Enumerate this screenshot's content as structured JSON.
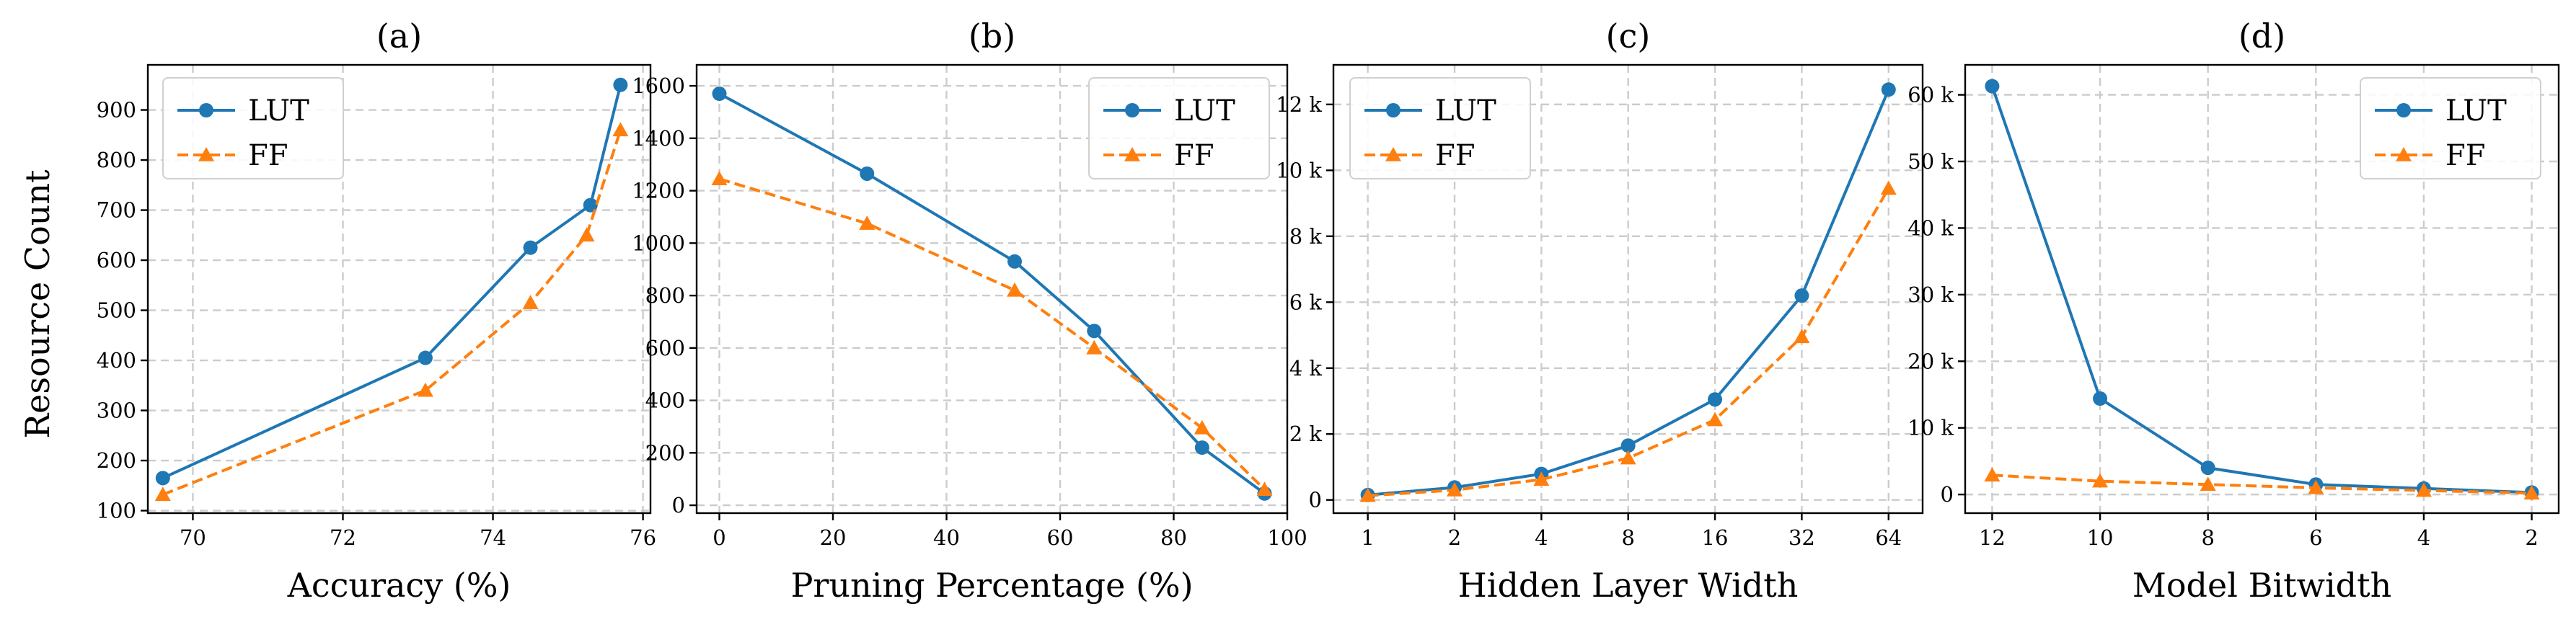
{
  "figure": {
    "ylabel": "Resource Count"
  },
  "colors": {
    "lut": "#1f77b4",
    "ff": "#ff7f0e"
  },
  "chart_data": [
    {
      "type": "line",
      "title": "(a)",
      "xlabel": "Accuracy (%)",
      "ylabel": "Resource Count",
      "xlim": [
        69.4,
        76.1
      ],
      "ylim": [
        95,
        990
      ],
      "xticks": [
        70,
        72,
        74,
        76
      ],
      "xtick_labels": [
        "70",
        "72",
        "74",
        "76"
      ],
      "yticks": [
        100,
        200,
        300,
        400,
        500,
        600,
        700,
        800,
        900
      ],
      "ytick_labels": [
        "100",
        "200",
        "300",
        "400",
        "500",
        "600",
        "700",
        "800",
        "900"
      ],
      "legend": "upper left",
      "grid": true,
      "series": [
        {
          "name": "LUT",
          "marker": "circle",
          "style": "solid",
          "x": [
            69.6,
            73.1,
            74.5,
            75.3,
            75.7
          ],
          "y": [
            165,
            405,
            625,
            710,
            950
          ]
        },
        {
          "name": "FF",
          "marker": "triangle",
          "style": "dashed",
          "x": [
            69.6,
            73.1,
            74.5,
            75.25,
            75.7
          ],
          "y": [
            132,
            340,
            515,
            650,
            860
          ]
        }
      ]
    },
    {
      "type": "line",
      "title": "(b)",
      "xlabel": "Pruning Percentage (%)",
      "xlim": [
        -4,
        100
      ],
      "ylim": [
        -30,
        1680
      ],
      "xticks": [
        0,
        20,
        40,
        60,
        80,
        100
      ],
      "xtick_labels": [
        "0",
        "20",
        "40",
        "60",
        "80",
        "100"
      ],
      "yticks": [
        0,
        200,
        400,
        600,
        800,
        1000,
        1200,
        1400,
        1600
      ],
      "ytick_labels": [
        "0",
        "200",
        "400",
        "600",
        "800",
        "1000",
        "1200",
        "1400",
        "1600"
      ],
      "legend": "upper right",
      "grid": true,
      "series": [
        {
          "name": "LUT",
          "marker": "circle",
          "style": "solid",
          "x": [
            0,
            26,
            52,
            66,
            85,
            96
          ],
          "y": [
            1570,
            1265,
            930,
            665,
            220,
            45
          ]
        },
        {
          "name": "FF",
          "marker": "triangle",
          "style": "dashed",
          "x": [
            0,
            26,
            52,
            66,
            85,
            96
          ],
          "y": [
            1245,
            1075,
            820,
            600,
            295,
            60
          ]
        }
      ]
    },
    {
      "type": "line",
      "title": "(c)",
      "xlabel": "Hidden Layer Width",
      "xscale": "log2",
      "xlim": [
        0.76,
        84
      ],
      "ylim": [
        -400,
        13200
      ],
      "xticks": [
        1,
        2,
        4,
        8,
        16,
        32,
        64
      ],
      "xtick_labels": [
        "1",
        "2",
        "4",
        "8",
        "16",
        "32",
        "64"
      ],
      "yticks": [
        0,
        2000,
        4000,
        6000,
        8000,
        10000,
        12000
      ],
      "ytick_labels": [
        "0",
        "2 k",
        "4 k",
        "6 k",
        "8 k",
        "10 k",
        "12 k"
      ],
      "legend": "upper left",
      "grid": true,
      "series": [
        {
          "name": "LUT",
          "marker": "circle",
          "style": "solid",
          "x": [
            1,
            2,
            4,
            8,
            16,
            32,
            64
          ],
          "y": [
            150,
            380,
            790,
            1650,
            3050,
            6200,
            12450
          ]
        },
        {
          "name": "FF",
          "marker": "triangle",
          "style": "dashed",
          "x": [
            1,
            2,
            4,
            8,
            16,
            32,
            64
          ],
          "y": [
            130,
            300,
            620,
            1270,
            2430,
            4950,
            9450
          ]
        }
      ]
    },
    {
      "type": "line",
      "title": "(d)",
      "xlabel": "Model Bitwidth",
      "xlim": [
        12.5,
        1.5
      ],
      "ylim": [
        -2800,
        64500
      ],
      "xticks": [
        12,
        10,
        8,
        6,
        4,
        2
      ],
      "xtick_labels": [
        "12",
        "10",
        "8",
        "6",
        "4",
        "2"
      ],
      "yticks": [
        0,
        10000,
        20000,
        30000,
        40000,
        50000,
        60000
      ],
      "ytick_labels": [
        "0",
        "10 k",
        "20 k",
        "30 k",
        "40 k",
        "50 k",
        "60 k"
      ],
      "legend": "upper right",
      "grid": true,
      "series": [
        {
          "name": "LUT",
          "marker": "circle",
          "style": "solid",
          "x": [
            12,
            10,
            8,
            6,
            4,
            2
          ],
          "y": [
            61300,
            14400,
            4000,
            1500,
            900,
            300
          ]
        },
        {
          "name": "FF",
          "marker": "triangle",
          "style": "dashed",
          "x": [
            12,
            10,
            8,
            6,
            4,
            2
          ],
          "y": [
            2900,
            2000,
            1500,
            1000,
            600,
            200
          ]
        }
      ]
    }
  ]
}
